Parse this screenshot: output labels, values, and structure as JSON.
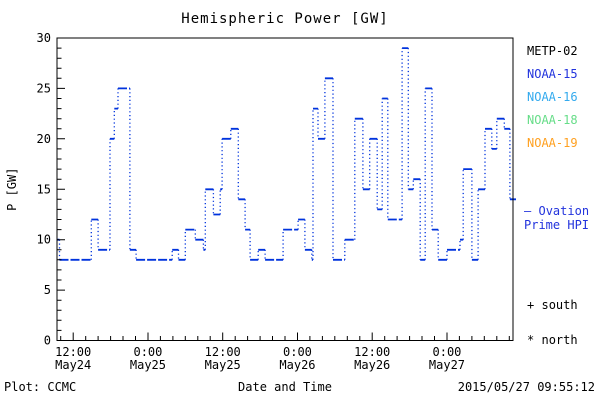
{
  "title": "Hemispheric Power [GW]",
  "colors": {
    "line": "#0033dd",
    "axis": "#000000",
    "background": "#ffffff"
  },
  "legend": {
    "satellites": [
      {
        "label": "METP-02",
        "color": "#000000"
      },
      {
        "label": "NOAA-15",
        "color": "#2233dd"
      },
      {
        "label": "NOAA-16",
        "color": "#33aaee"
      },
      {
        "label": "NOAA-18",
        "color": "#66dd88"
      },
      {
        "label": "NOAA-19",
        "color": "#ffa020"
      }
    ],
    "ovation": {
      "dash": "—",
      "word1": "Ovation",
      "word2": "Prime HPI",
      "color": "#2233dd"
    },
    "markers": [
      {
        "symbol": "+",
        "label": "south"
      },
      {
        "symbol": "*",
        "label": "north"
      }
    ]
  },
  "footer": {
    "left": "Plot: CCMC",
    "center": "Date and Time",
    "right": "2015/05/27 09:55:12"
  },
  "chart_data": {
    "type": "line",
    "style": "step-after, dotted verticals",
    "title": "Hemispheric Power [GW]",
    "xlabel": "Date and Time",
    "ylabel": "P [GW]",
    "ylim": [
      0,
      30
    ],
    "y_major_ticks": [
      0,
      5,
      10,
      15,
      20,
      25,
      30
    ],
    "y_minor_step": 1,
    "x_units": "hours since 2015-05-24 00:00 UT",
    "x_range_hours": [
      9.4,
      82.6
    ],
    "x_minor_step_hours": 2,
    "x_ticks": [
      {
        "hours": 12,
        "time": "12:00",
        "date": "May24"
      },
      {
        "hours": 24,
        "time": "0:00",
        "date": "May25"
      },
      {
        "hours": 36,
        "time": "12:00",
        "date": "May25"
      },
      {
        "hours": 48,
        "time": "0:00",
        "date": "May26"
      },
      {
        "hours": 60,
        "time": "12:00",
        "date": "May26"
      },
      {
        "hours": 72,
        "time": "0:00",
        "date": "May27"
      }
    ],
    "series": [
      {
        "name": "Ovation Prime HPI",
        "units": "GW",
        "steps_hours_gw": [
          [
            9.4,
            10
          ],
          [
            9.8,
            8
          ],
          [
            14.9,
            12
          ],
          [
            16.0,
            9
          ],
          [
            17.9,
            20
          ],
          [
            18.6,
            23
          ],
          [
            19.2,
            25
          ],
          [
            21.1,
            9
          ],
          [
            22.1,
            8
          ],
          [
            27.9,
            9
          ],
          [
            28.9,
            8
          ],
          [
            30.0,
            11
          ],
          [
            31.6,
            10
          ],
          [
            32.9,
            9
          ],
          [
            33.2,
            15
          ],
          [
            34.5,
            12.5
          ],
          [
            35.6,
            15
          ],
          [
            35.9,
            20
          ],
          [
            37.3,
            21
          ],
          [
            38.5,
            14
          ],
          [
            39.6,
            11
          ],
          [
            40.4,
            8
          ],
          [
            41.7,
            9
          ],
          [
            42.8,
            8
          ],
          [
            45.7,
            11
          ],
          [
            48.1,
            12
          ],
          [
            49.2,
            9
          ],
          [
            50.3,
            8
          ],
          [
            50.5,
            23
          ],
          [
            51.3,
            20
          ],
          [
            52.4,
            26
          ],
          [
            53.7,
            8
          ],
          [
            55.6,
            10
          ],
          [
            57.2,
            22
          ],
          [
            58.5,
            15
          ],
          [
            59.6,
            20
          ],
          [
            60.8,
            13
          ],
          [
            61.6,
            24
          ],
          [
            62.5,
            12
          ],
          [
            64.8,
            29
          ],
          [
            65.8,
            15
          ],
          [
            66.6,
            16
          ],
          [
            67.7,
            8
          ],
          [
            68.5,
            25
          ],
          [
            69.6,
            11
          ],
          [
            70.6,
            8
          ],
          [
            72.0,
            9
          ],
          [
            74.1,
            10
          ],
          [
            74.6,
            17
          ],
          [
            76.0,
            8
          ],
          [
            77.0,
            15
          ],
          [
            78.1,
            21
          ],
          [
            79.2,
            19
          ],
          [
            80.0,
            22
          ],
          [
            81.2,
            21
          ],
          [
            82.1,
            14
          ]
        ]
      }
    ]
  }
}
